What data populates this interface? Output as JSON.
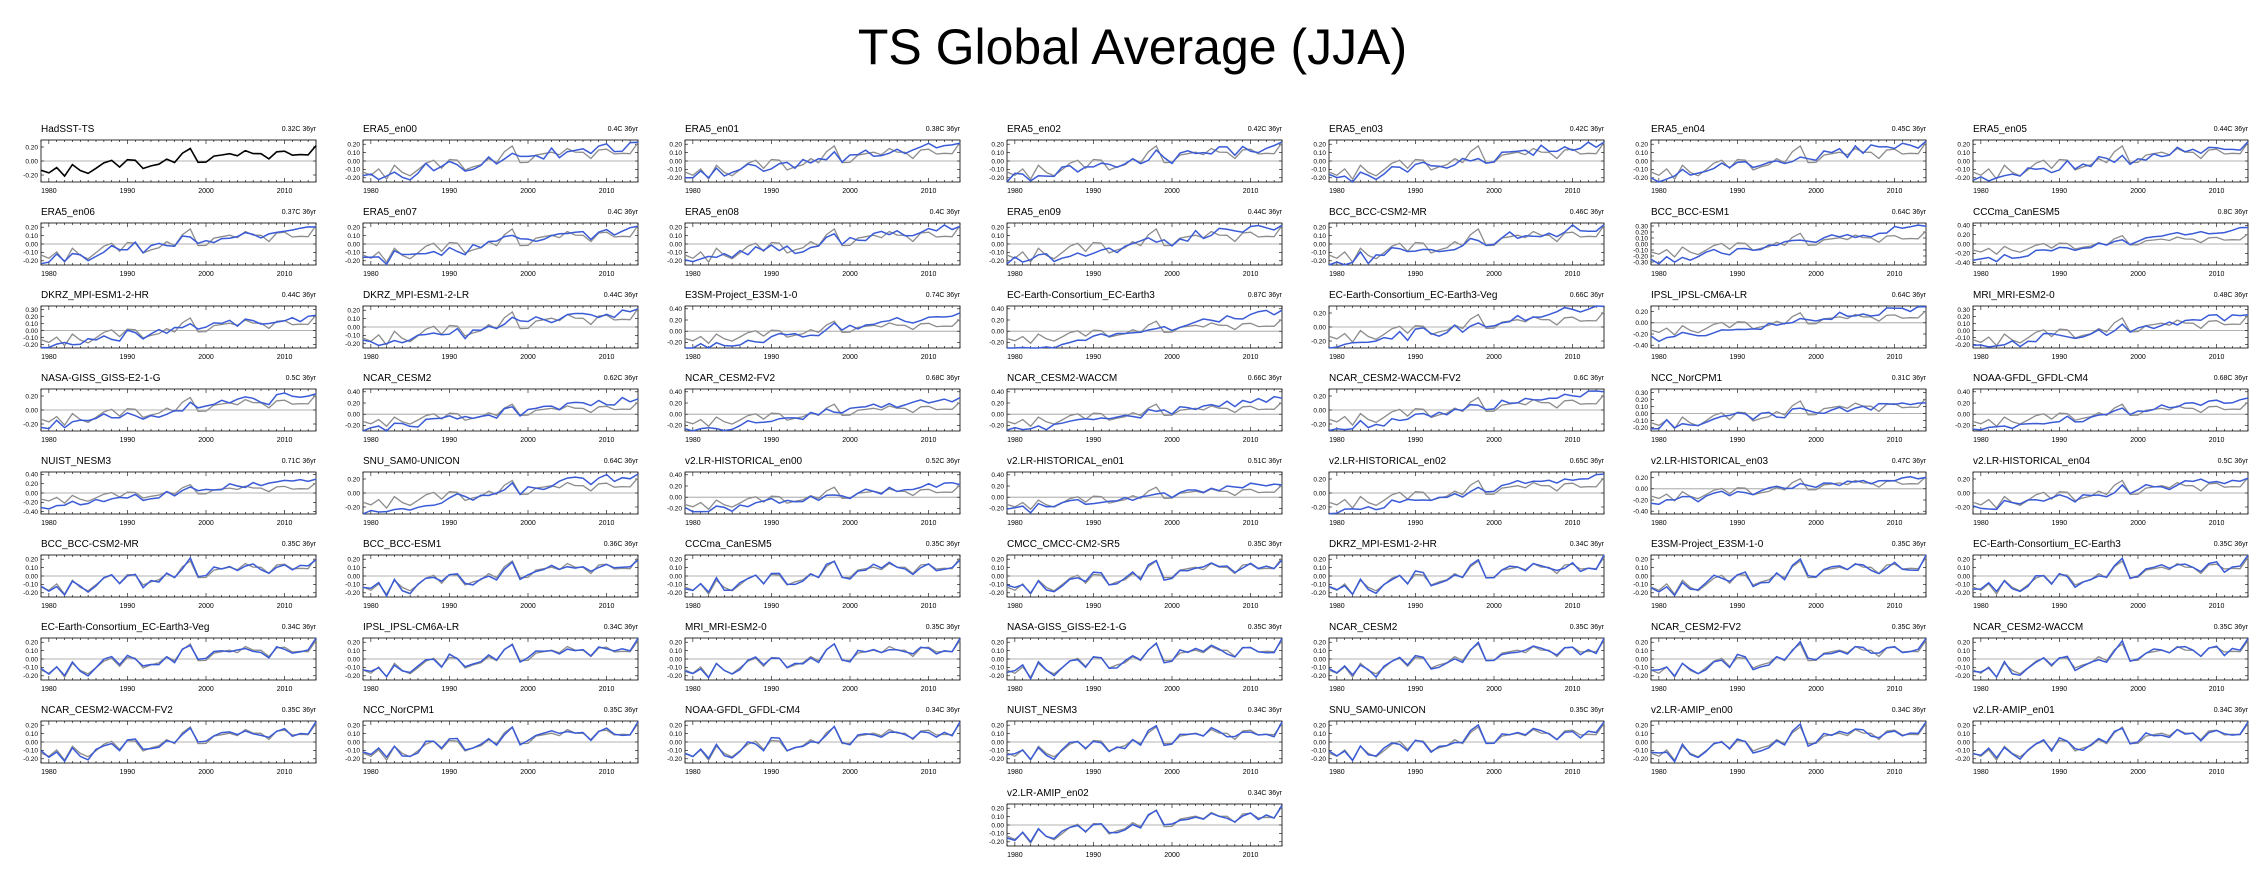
{
  "title": "TS Global Average (JJA)",
  "colors": {
    "observed": "#000000",
    "reference": "#8c8c8c",
    "model": "#3a5bd6",
    "zero_line": "#9a9a9a",
    "axis": "#000000"
  },
  "chart_data": {
    "type": "line",
    "x_ticks": [
      "1980",
      "1990",
      "2000",
      "2010"
    ],
    "x_range": [
      1979,
      2014
    ],
    "trend_unit": "36yr",
    "panels": [
      {
        "name": "HadSST-TS",
        "trend": "0.32C 36yr",
        "yticks": [
          "0.20",
          "0.00",
          "-0.20"
        ],
        "ylim": [
          -0.3,
          0.3
        ],
        "observed": true
      },
      {
        "name": "ERA5_en00",
        "trend": "0.4C 36yr",
        "yticks": [
          "0.20",
          "0.10",
          "0.00",
          "-0.10",
          "-0.20"
        ],
        "ylim": [
          -0.25,
          0.25
        ]
      },
      {
        "name": "ERA5_en01",
        "trend": "0.38C 36yr",
        "yticks": [
          "0.20",
          "0.10",
          "0.00",
          "-0.10",
          "-0.20"
        ],
        "ylim": [
          -0.25,
          0.25
        ]
      },
      {
        "name": "ERA5_en02",
        "trend": "0.42C 36yr",
        "yticks": [
          "0.20",
          "0.10",
          "0.00",
          "-0.10",
          "-0.20"
        ],
        "ylim": [
          -0.25,
          0.25
        ]
      },
      {
        "name": "ERA5_en03",
        "trend": "0.42C 36yr",
        "yticks": [
          "0.20",
          "0.10",
          "0.00",
          "-0.10",
          "-0.20"
        ],
        "ylim": [
          -0.25,
          0.25
        ]
      },
      {
        "name": "ERA5_en04",
        "trend": "0.45C 36yr",
        "yticks": [
          "0.20",
          "0.10",
          "0.00",
          "-0.10",
          "-0.20"
        ],
        "ylim": [
          -0.25,
          0.25
        ]
      },
      {
        "name": "ERA5_en05",
        "trend": "0.44C 36yr",
        "yticks": [
          "0.20",
          "0.10",
          "0.00",
          "-0.10",
          "-0.20"
        ],
        "ylim": [
          -0.25,
          0.25
        ]
      },
      {
        "name": "ERA5_en06",
        "trend": "0.37C 36yr",
        "yticks": [
          "0.20",
          "0.10",
          "0.00",
          "-0.10",
          "-0.20"
        ],
        "ylim": [
          -0.25,
          0.25
        ]
      },
      {
        "name": "ERA5_en07",
        "trend": "0.4C 36yr",
        "yticks": [
          "0.20",
          "0.10",
          "0.00",
          "-0.10",
          "-0.20"
        ],
        "ylim": [
          -0.25,
          0.25
        ]
      },
      {
        "name": "ERA5_en08",
        "trend": "0.4C 36yr",
        "yticks": [
          "0.20",
          "0.10",
          "0.00",
          "-0.10",
          "-0.20"
        ],
        "ylim": [
          -0.25,
          0.25
        ]
      },
      {
        "name": "ERA5_en09",
        "trend": "0.44C 36yr",
        "yticks": [
          "0.20",
          "0.10",
          "0.00",
          "-0.10",
          "-0.20"
        ],
        "ylim": [
          -0.25,
          0.25
        ]
      },
      {
        "name": "BCC_BCC-CSM2-MR",
        "trend": "0.46C 36yr",
        "yticks": [
          "0.20",
          "0.10",
          "0.00",
          "-0.10",
          "-0.20"
        ],
        "ylim": [
          -0.25,
          0.25
        ]
      },
      {
        "name": "BCC_BCC-ESM1",
        "trend": "0.64C 36yr",
        "yticks": [
          "0.30",
          "0.20",
          "0.10",
          "0.00",
          "-0.10",
          "-0.20",
          "-0.30"
        ],
        "ylim": [
          -0.35,
          0.35
        ]
      },
      {
        "name": "CCCma_CanESM5",
        "trend": "0.8C 36yr",
        "yticks": [
          "0.40",
          "0.20",
          "0.00",
          "-0.20",
          "-0.40"
        ],
        "ylim": [
          -0.45,
          0.45
        ]
      },
      {
        "name": "DKRZ_MPI-ESM1-2-HR",
        "trend": "0.44C 36yr",
        "yticks": [
          "0.30",
          "0.20",
          "0.10",
          "0.00",
          "-0.10",
          "-0.20"
        ],
        "ylim": [
          -0.25,
          0.35
        ]
      },
      {
        "name": "DKRZ_MPI-ESM1-2-LR",
        "trend": "0.44C 36yr",
        "yticks": [
          "0.20",
          "0.10",
          "0.00",
          "-0.10",
          "-0.20"
        ],
        "ylim": [
          -0.25,
          0.25
        ]
      },
      {
        "name": "E3SM-Project_E3SM-1-0",
        "trend": "0.74C 36yr",
        "yticks": [
          "0.40",
          "0.20",
          "0.00",
          "-0.20"
        ],
        "ylim": [
          -0.3,
          0.45
        ]
      },
      {
        "name": "EC-Earth-Consortium_EC-Earth3",
        "trend": "0.87C 36yr",
        "yticks": [
          "0.40",
          "0.20",
          "0.00",
          "-0.20"
        ],
        "ylim": [
          -0.3,
          0.45
        ]
      },
      {
        "name": "EC-Earth-Consortium_EC-Earth3-Veg",
        "trend": "0.66C 36yr",
        "yticks": [
          "0.20",
          "0.00",
          "-0.20"
        ],
        "ylim": [
          -0.3,
          0.3
        ]
      },
      {
        "name": "IPSL_IPSL-CM6A-LR",
        "trend": "0.64C 36yr",
        "yticks": [
          "0.20",
          "0.00",
          "-0.20",
          "-0.40"
        ],
        "ylim": [
          -0.45,
          0.3
        ]
      },
      {
        "name": "MRI_MRI-ESM2-0",
        "trend": "0.48C 36yr",
        "yticks": [
          "0.30",
          "0.20",
          "0.10",
          "0.00",
          "-0.10",
          "-0.20"
        ],
        "ylim": [
          -0.25,
          0.35
        ]
      },
      {
        "name": "NASA-GISS_GISS-E2-1-G",
        "trend": "0.5C 36yr",
        "yticks": [
          "0.20",
          "0.00",
          "-0.20"
        ],
        "ylim": [
          -0.3,
          0.3
        ]
      },
      {
        "name": "NCAR_CESM2",
        "trend": "0.62C 36yr",
        "yticks": [
          "0.40",
          "0.20",
          "0.00",
          "-0.20"
        ],
        "ylim": [
          -0.3,
          0.45
        ]
      },
      {
        "name": "NCAR_CESM2-FV2",
        "trend": "0.68C 36yr",
        "yticks": [
          "0.40",
          "0.20",
          "0.00",
          "-0.20"
        ],
        "ylim": [
          -0.3,
          0.45
        ]
      },
      {
        "name": "NCAR_CESM2-WACCM",
        "trend": "0.66C 36yr",
        "yticks": [
          "0.40",
          "0.20",
          "0.00",
          "-0.20"
        ],
        "ylim": [
          -0.3,
          0.45
        ]
      },
      {
        "name": "NCAR_CESM2-WACCM-FV2",
        "trend": "0.6C 36yr",
        "yticks": [
          "0.20",
          "0.00",
          "-0.20"
        ],
        "ylim": [
          -0.3,
          0.3
        ]
      },
      {
        "name": "NCC_NorCPM1",
        "trend": "0.31C 36yr",
        "yticks": [
          "0.30",
          "0.20",
          "0.10",
          "0.00",
          "-0.10",
          "-0.20"
        ],
        "ylim": [
          -0.25,
          0.35
        ]
      },
      {
        "name": "NOAA-GFDL_GFDL-CM4",
        "trend": "0.68C 36yr",
        "yticks": [
          "0.40",
          "0.20",
          "0.00",
          "-0.20"
        ],
        "ylim": [
          -0.3,
          0.45
        ]
      },
      {
        "name": "NUIST_NESM3",
        "trend": "0.71C 36yr",
        "yticks": [
          "0.40",
          "0.20",
          "0.00",
          "-0.20",
          "-0.40"
        ],
        "ylim": [
          -0.45,
          0.45
        ]
      },
      {
        "name": "SNU_SAM0-UNICON",
        "trend": "0.64C 36yr",
        "yticks": [
          "0.20",
          "0.00",
          "-0.20"
        ],
        "ylim": [
          -0.3,
          0.3
        ]
      },
      {
        "name": "v2.LR-HISTORICAL_en00",
        "trend": "0.52C 36yr",
        "yticks": [
          "0.40",
          "0.20",
          "0.00",
          "-0.20"
        ],
        "ylim": [
          -0.3,
          0.45
        ]
      },
      {
        "name": "v2.LR-HISTORICAL_en01",
        "trend": "0.51C 36yr",
        "yticks": [
          "0.40",
          "0.20",
          "0.00",
          "-0.20"
        ],
        "ylim": [
          -0.3,
          0.45
        ]
      },
      {
        "name": "v2.LR-HISTORICAL_en02",
        "trend": "0.65C 36yr",
        "yticks": [
          "0.20",
          "0.00",
          "-0.20"
        ],
        "ylim": [
          -0.3,
          0.3
        ]
      },
      {
        "name": "v2.LR-HISTORICAL_en03",
        "trend": "0.47C 36yr",
        "yticks": [
          "0.20",
          "0.00",
          "-0.20",
          "-0.40"
        ],
        "ylim": [
          -0.45,
          0.3
        ]
      },
      {
        "name": "v2.LR-HISTORICAL_en04",
        "trend": "0.5C 36yr",
        "yticks": [
          "0.20",
          "0.00",
          "-0.20"
        ],
        "ylim": [
          -0.3,
          0.3
        ]
      },
      {
        "name": "BCC_BCC-CSM2-MR",
        "trend": "0.35C 36yr",
        "yticks": [
          "0.20",
          "0.10",
          "0.00",
          "-0.10",
          "-0.20"
        ],
        "ylim": [
          -0.25,
          0.25
        ]
      },
      {
        "name": "BCC_BCC-ESM1",
        "trend": "0.36C 36yr",
        "yticks": [
          "0.20",
          "0.10",
          "0.00",
          "-0.10",
          "-0.20"
        ],
        "ylim": [
          -0.25,
          0.25
        ]
      },
      {
        "name": "CCCma_CanESM5",
        "trend": "0.35C 36yr",
        "yticks": [
          "0.20",
          "0.10",
          "0.00",
          "-0.10",
          "-0.20"
        ],
        "ylim": [
          -0.25,
          0.25
        ]
      },
      {
        "name": "CMCC_CMCC-CM2-SR5",
        "trend": "0.35C 36yr",
        "yticks": [
          "0.20",
          "0.10",
          "0.00",
          "-0.10",
          "-0.20"
        ],
        "ylim": [
          -0.25,
          0.25
        ]
      },
      {
        "name": "DKRZ_MPI-ESM1-2-HR",
        "trend": "0.34C 36yr",
        "yticks": [
          "0.20",
          "0.10",
          "0.00",
          "-0.10",
          "-0.20"
        ],
        "ylim": [
          -0.25,
          0.25
        ]
      },
      {
        "name": "E3SM-Project_E3SM-1-0",
        "trend": "0.35C 36yr",
        "yticks": [
          "0.20",
          "0.10",
          "0.00",
          "-0.10",
          "-0.20"
        ],
        "ylim": [
          -0.25,
          0.25
        ]
      },
      {
        "name": "EC-Earth-Consortium_EC-Earth3",
        "trend": "0.35C 36yr",
        "yticks": [
          "0.20",
          "0.10",
          "0.00",
          "-0.10",
          "-0.20"
        ],
        "ylim": [
          -0.25,
          0.25
        ]
      },
      {
        "name": "EC-Earth-Consortium_EC-Earth3-Veg",
        "trend": "0.34C 36yr",
        "yticks": [
          "0.20",
          "0.10",
          "0.00",
          "-0.10",
          "-0.20"
        ],
        "ylim": [
          -0.25,
          0.25
        ]
      },
      {
        "name": "IPSL_IPSL-CM6A-LR",
        "trend": "0.34C 36yr",
        "yticks": [
          "0.20",
          "0.10",
          "0.00",
          "-0.10",
          "-0.20"
        ],
        "ylim": [
          -0.25,
          0.25
        ]
      },
      {
        "name": "MRI_MRI-ESM2-0",
        "trend": "0.35C 36yr",
        "yticks": [
          "0.20",
          "0.10",
          "0.00",
          "-0.10",
          "-0.20"
        ],
        "ylim": [
          -0.25,
          0.25
        ]
      },
      {
        "name": "NASA-GISS_GISS-E2-1-G",
        "trend": "0.35C 36yr",
        "yticks": [
          "0.20",
          "0.10",
          "0.00",
          "-0.10",
          "-0.20"
        ],
        "ylim": [
          -0.25,
          0.25
        ]
      },
      {
        "name": "NCAR_CESM2",
        "trend": "0.35C 36yr",
        "yticks": [
          "0.20",
          "0.10",
          "0.00",
          "-0.10",
          "-0.20"
        ],
        "ylim": [
          -0.25,
          0.25
        ]
      },
      {
        "name": "NCAR_CESM2-FV2",
        "trend": "0.35C 36yr",
        "yticks": [
          "0.20",
          "0.10",
          "0.00",
          "-0.10",
          "-0.20"
        ],
        "ylim": [
          -0.25,
          0.25
        ]
      },
      {
        "name": "NCAR_CESM2-WACCM",
        "trend": "0.35C 36yr",
        "yticks": [
          "0.20",
          "0.10",
          "0.00",
          "-0.10",
          "-0.20"
        ],
        "ylim": [
          -0.25,
          0.25
        ]
      },
      {
        "name": "NCAR_CESM2-WACCM-FV2",
        "trend": "0.35C 36yr",
        "yticks": [
          "0.20",
          "0.10",
          "0.00",
          "-0.10",
          "-0.20"
        ],
        "ylim": [
          -0.25,
          0.25
        ]
      },
      {
        "name": "NCC_NorCPM1",
        "trend": "0.35C 36yr",
        "yticks": [
          "0.20",
          "0.10",
          "0.00",
          "-0.10",
          "-0.20"
        ],
        "ylim": [
          -0.25,
          0.25
        ]
      },
      {
        "name": "NOAA-GFDL_GFDL-CM4",
        "trend": "0.34C 36yr",
        "yticks": [
          "0.20",
          "0.10",
          "0.00",
          "-0.10",
          "-0.20"
        ],
        "ylim": [
          -0.25,
          0.25
        ]
      },
      {
        "name": "NUIST_NESM3",
        "trend": "0.34C 36yr",
        "yticks": [
          "0.20",
          "0.10",
          "0.00",
          "-0.10",
          "-0.20"
        ],
        "ylim": [
          -0.25,
          0.25
        ]
      },
      {
        "name": "SNU_SAM0-UNICON",
        "trend": "0.35C 36yr",
        "yticks": [
          "0.20",
          "0.10",
          "0.00",
          "-0.10",
          "-0.20"
        ],
        "ylim": [
          -0.25,
          0.25
        ]
      },
      {
        "name": "v2.LR-AMIP_en00",
        "trend": "0.34C 36yr",
        "yticks": [
          "0.20",
          "0.10",
          "0.00",
          "-0.10",
          "-0.20"
        ],
        "ylim": [
          -0.25,
          0.25
        ]
      },
      {
        "name": "v2.LR-AMIP_en01",
        "trend": "0.34C 36yr",
        "yticks": [
          "0.20",
          "0.10",
          "0.00",
          "-0.10",
          "-0.20"
        ],
        "ylim": [
          -0.25,
          0.25
        ]
      },
      {
        "name": "v2.LR-AMIP_en02",
        "trend": "0.34C 36yr",
        "yticks": [
          "0.20",
          "0.10",
          "0.00",
          "-0.10",
          "-0.20"
        ],
        "ylim": [
          -0.25,
          0.25
        ]
      }
    ]
  }
}
